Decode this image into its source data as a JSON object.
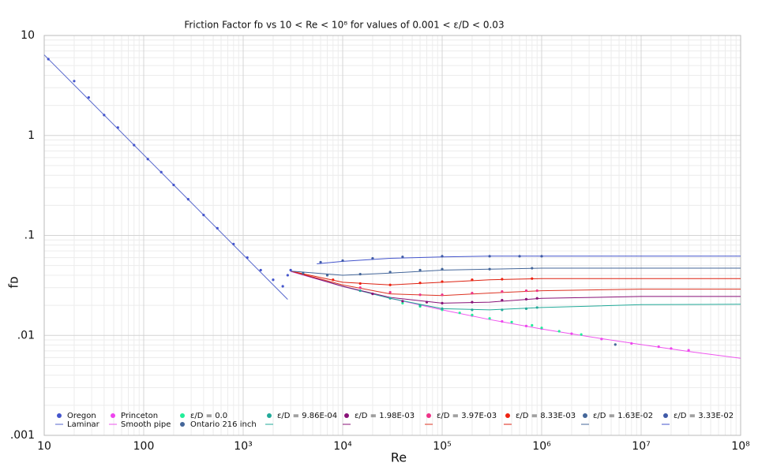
{
  "chart_data": {
    "type": "scatter",
    "title": "Friction Factor fᴅ vs 10 < Re < 10⁸ for values of 0.001 < ε/D < 0.03",
    "xlabel": "Re",
    "ylabel": "fᴅ",
    "xscale": "log",
    "yscale": "log",
    "grid": true,
    "minor_grid": true,
    "legend": "bottom",
    "xlim": [
      10,
      100000000
    ],
    "ylim": [
      0.001,
      10
    ],
    "xticks": [
      10,
      100,
      {
        "value": 1000,
        "label": "10³"
      },
      {
        "value": 10000,
        "label": "10⁴"
      },
      {
        "value": 100000,
        "label": "10⁵"
      },
      {
        "value": 1000000,
        "label": "10⁶"
      },
      {
        "value": 10000000,
        "label": "10⁷"
      },
      {
        "value": 100000000,
        "label": "10⁸"
      }
    ],
    "yticks": [
      {
        "value": 0.001,
        "label": ".001"
      },
      {
        "value": 0.01,
        "label": ".01"
      },
      {
        "value": 0.1,
        "label": ".1"
      },
      1,
      10
    ],
    "series": [
      {
        "name": "Oregon",
        "kind": "marker",
        "color": "#4455cc",
        "x": [
          11,
          20,
          28,
          40,
          55,
          80,
          110,
          150,
          200,
          280,
          400,
          550,
          800,
          1100,
          1500,
          2000,
          2500,
          2800,
          3000
        ],
        "values": [
          5.8,
          3.5,
          2.4,
          1.6,
          1.2,
          0.8,
          0.58,
          0.43,
          0.32,
          0.23,
          0.16,
          0.118,
          0.082,
          0.06,
          0.045,
          0.036,
          0.031,
          0.04,
          0.045
        ]
      },
      {
        "name": "Laminar",
        "kind": "line",
        "color": "#5566cc",
        "x": [
          10,
          2800
        ],
        "values": [
          6.4,
          0.0229
        ]
      },
      {
        "name": "Princeton",
        "kind": "marker",
        "color": "#ee44ee",
        "x": [
          60000,
          100000,
          200000,
          400000,
          700000,
          1000000,
          2000000,
          4000000,
          8000000,
          15000000,
          20000000,
          30000000
        ],
        "values": [
          0.0198,
          0.0182,
          0.0158,
          0.0138,
          0.0124,
          0.0117,
          0.0104,
          0.0092,
          0.0083,
          0.0077,
          0.0074,
          0.0071
        ]
      },
      {
        "name": "Smooth pipe",
        "kind": "line",
        "color": "#ee55ee",
        "x": [
          3000,
          10000,
          30000,
          100000,
          300000,
          1000000,
          3000000,
          10000000,
          30000000,
          100000000
        ],
        "values": [
          0.0435,
          0.0309,
          0.0235,
          0.018,
          0.0144,
          0.0116,
          0.0097,
          0.0081,
          0.0069,
          0.0059
        ]
      },
      {
        "name": "ε/D = 0.0",
        "kind": "marker",
        "color": "#22ee99",
        "x": [
          40000,
          60000,
          100000,
          150000,
          200000,
          300000,
          500000,
          800000,
          1000000,
          1500000,
          2500000
        ],
        "values": [
          0.021,
          0.0195,
          0.018,
          0.0168,
          0.016,
          0.0148,
          0.0136,
          0.0126,
          0.0119,
          0.011,
          0.0102
        ]
      },
      {
        "name": "Ontario 216 inch",
        "kind": "marker",
        "color": "#446699",
        "x": [
          5500000
        ],
        "values": [
          0.0081
        ]
      },
      {
        "name": "ε/D = 9.86E-04",
        "kind": "marker",
        "color": "#22aa99",
        "x": [
          15000,
          30000,
          60000,
          100000,
          200000,
          400000,
          700000,
          900000
        ],
        "values": [
          0.028,
          0.0235,
          0.02,
          0.0185,
          0.018,
          0.018,
          0.0185,
          0.019
        ],
        "line": {
          "color": "#22aa99",
          "x": [
            3000,
            10000,
            30000,
            100000,
            300000,
            1000000,
            10000000,
            100000000
          ],
          "values": [
            0.044,
            0.031,
            0.0235,
            0.0185,
            0.018,
            0.019,
            0.0203,
            0.0205
          ]
        }
      },
      {
        "name": "ε/D = 1.98E-03",
        "kind": "marker",
        "color": "#881177",
        "x": [
          20000,
          40000,
          70000,
          100000,
          200000,
          400000,
          700000,
          900000
        ],
        "values": [
          0.026,
          0.022,
          0.0215,
          0.021,
          0.0215,
          0.0225,
          0.023,
          0.0235
        ],
        "line": {
          "color": "#881177",
          "x": [
            3000,
            10000,
            30000,
            100000,
            300000,
            1000000,
            10000000,
            100000000
          ],
          "values": [
            0.044,
            0.031,
            0.024,
            0.021,
            0.0215,
            0.0235,
            0.0245,
            0.0245
          ]
        }
      },
      {
        "name": "ε/D = 3.97E-03",
        "kind": "marker",
        "color": "#ee3388",
        "x": [
          15000,
          30000,
          60000,
          100000,
          200000,
          400000,
          700000,
          900000
        ],
        "values": [
          0.03,
          0.027,
          0.0255,
          0.0255,
          0.0265,
          0.0275,
          0.028,
          0.028
        ],
        "line": {
          "color": "#dd3322",
          "x": [
            3000,
            10000,
            30000,
            100000,
            300000,
            1000000,
            10000000,
            100000000
          ],
          "values": [
            0.044,
            0.032,
            0.026,
            0.025,
            0.0265,
            0.028,
            0.029,
            0.029
          ]
        }
      },
      {
        "name": "ε/D = 8.33E-03",
        "kind": "marker",
        "color": "#ee2211",
        "x": [
          8000,
          15000,
          30000,
          60000,
          100000,
          200000,
          400000,
          800000
        ],
        "values": [
          0.036,
          0.033,
          0.032,
          0.0335,
          0.0345,
          0.036,
          0.0365,
          0.037
        ],
        "line": {
          "color": "#dd2211",
          "x": [
            3000,
            10000,
            30000,
            100000,
            300000,
            1000000,
            10000000,
            100000000
          ],
          "values": [
            0.044,
            0.034,
            0.032,
            0.034,
            0.036,
            0.037,
            0.037,
            0.037
          ]
        }
      },
      {
        "name": "ε/D = 1.63E-02",
        "kind": "marker",
        "color": "#446699",
        "x": [
          4000,
          7000,
          15000,
          30000,
          60000,
          100000,
          300000,
          800000
        ],
        "values": [
          0.042,
          0.04,
          0.041,
          0.043,
          0.045,
          0.046,
          0.046,
          0.047
        ],
        "line": {
          "color": "#446699",
          "x": [
            3000,
            10000,
            30000,
            100000,
            300000,
            1000000,
            10000000,
            100000000
          ],
          "values": [
            0.044,
            0.04,
            0.042,
            0.045,
            0.046,
            0.047,
            0.047,
            0.047
          ]
        }
      },
      {
        "name": "ε/D = 3.33E-02",
        "kind": "marker",
        "color": "#3f5aa8",
        "x": [
          6000,
          10000,
          20000,
          40000,
          100000,
          300000,
          600000,
          1000000
        ],
        "values": [
          0.054,
          0.056,
          0.059,
          0.061,
          0.062,
          0.062,
          0.062,
          0.062
        ],
        "line": {
          "color": "#4455cc",
          "x": [
            5500,
            10000,
            30000,
            100000,
            300000,
            1000000,
            10000000,
            100000000
          ],
          "values": [
            0.052,
            0.055,
            0.059,
            0.061,
            0.062,
            0.062,
            0.062,
            0.062
          ]
        }
      }
    ]
  }
}
